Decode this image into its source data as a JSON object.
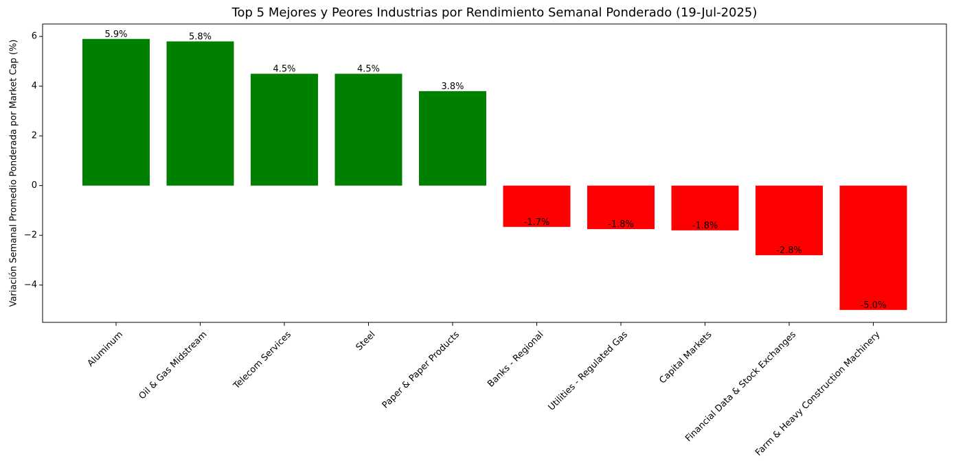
{
  "chart_data": {
    "type": "bar",
    "title": "Top 5 Mejores y Peores Industrias por Rendimiento Semanal Ponderado (19-Jul-2025)",
    "xlabel": "",
    "ylabel": "Variación Semanal Promedio Ponderada por Market Cap (%)",
    "categories": [
      "Aluminum",
      "Oil & Gas Midstream",
      "Telecom Services",
      "Steel",
      "Paper & Paper Products",
      "Banks - Regional",
      "Utilities - Regulated Gas",
      "Capital Markets",
      "Financial Data & Stock Exchanges",
      "Farm & Heavy Construction Machinery"
    ],
    "values": [
      5.9,
      5.8,
      4.5,
      4.5,
      3.8,
      -1.66,
      -1.75,
      -1.8,
      -2.8,
      -5.0
    ],
    "value_labels": [
      "5.9%",
      "5.8%",
      "4.5%",
      "4.5%",
      "3.8%",
      "-1.7%",
      "-1.8%",
      "-1.8%",
      "-2.8%",
      "-5.0%"
    ],
    "colors": [
      "#008000",
      "#008000",
      "#008000",
      "#008000",
      "#008000",
      "#ff0000",
      "#ff0000",
      "#ff0000",
      "#ff0000",
      "#ff0000"
    ],
    "ylim": [
      -5.5,
      6.5
    ],
    "yticks": [
      -4,
      -2,
      0,
      2,
      4,
      6
    ],
    "ytick_labels": [
      "−4",
      "−2",
      "0",
      "2",
      "4",
      "6"
    ],
    "grid": false,
    "legend": "none"
  }
}
